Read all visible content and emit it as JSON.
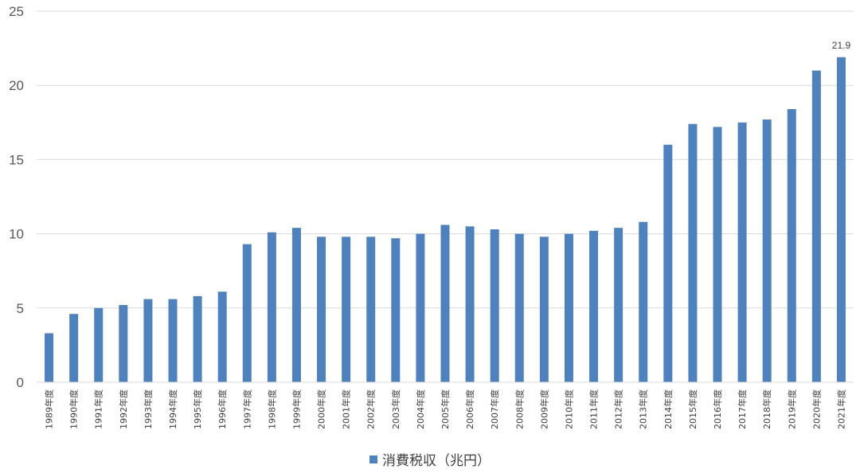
{
  "chart_data": {
    "type": "bar",
    "categories": [
      "1989年度",
      "1990年度",
      "1991年度",
      "1992年度",
      "1993年度",
      "1994年度",
      "1995年度",
      "1996年度",
      "1997年度",
      "1998年度",
      "1999年度",
      "2000年度",
      "2001年度",
      "2002年度",
      "2003年度",
      "2004年度",
      "2005年度",
      "2006年度",
      "2007年度",
      "2008年度",
      "2009年度",
      "2010年度",
      "2011年度",
      "2012年度",
      "2013年度",
      "2014年度",
      "2015年度",
      "2016年度",
      "2017年度",
      "2018年度",
      "2019年度",
      "2020年度",
      "2021年度"
    ],
    "series": [
      {
        "name": "消費税収（兆円）",
        "values": [
          3.3,
          4.6,
          5.0,
          5.2,
          5.6,
          5.6,
          5.8,
          6.1,
          9.3,
          10.1,
          10.4,
          9.8,
          9.8,
          9.8,
          9.7,
          10.0,
          10.6,
          10.5,
          10.3,
          10.0,
          9.8,
          10.0,
          10.2,
          10.4,
          10.8,
          16.0,
          17.4,
          17.2,
          17.5,
          17.7,
          18.4,
          21.0,
          21.9
        ],
        "color": "#4f81bd"
      }
    ],
    "data_labels": [
      {
        "category": "2021年度",
        "text": "21.9"
      }
    ],
    "ylim": [
      0,
      25
    ],
    "yticks": [
      0,
      5,
      10,
      15,
      20,
      25
    ],
    "grid": true,
    "gridline_color": "#d9d9d9",
    "legend_position": "bottom"
  }
}
